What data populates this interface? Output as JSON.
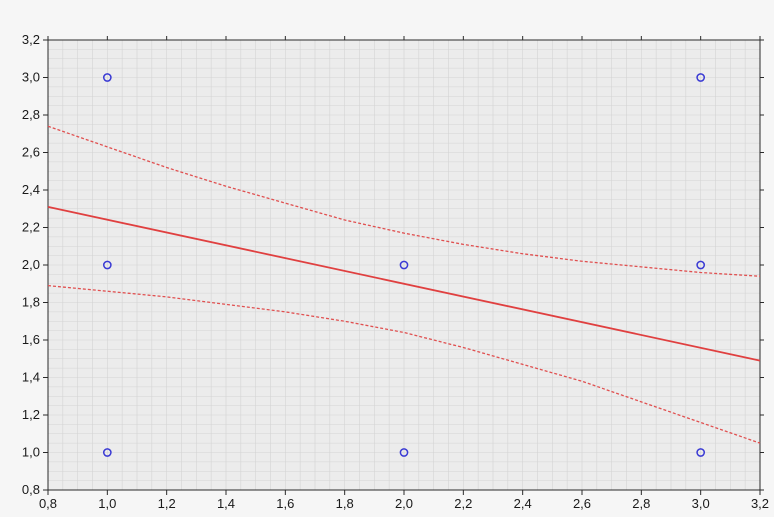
{
  "chart_data": {
    "type": "scatter",
    "title": "",
    "xlabel": "",
    "ylabel": "",
    "xlim": [
      0.8,
      3.2
    ],
    "ylim": [
      0.8,
      3.2
    ],
    "grid": true,
    "x_ticks": [
      0.8,
      1.0,
      1.2,
      1.4,
      1.6,
      1.8,
      2.0,
      2.2,
      2.4,
      2.6,
      2.8,
      3.0,
      3.2
    ],
    "x_tick_labels": [
      "0,8",
      "1,0",
      "1,2",
      "1,4",
      "1,6",
      "1,8",
      "2,0",
      "2,2",
      "2,4",
      "2,6",
      "2,8",
      "3,0",
      "3,2"
    ],
    "y_ticks": [
      0.8,
      1.0,
      1.2,
      1.4,
      1.6,
      1.8,
      2.0,
      2.2,
      2.4,
      2.6,
      2.8,
      3.0,
      3.2
    ],
    "y_tick_labels": [
      "0,8",
      "1,0",
      "1,2",
      "1,4",
      "1,6",
      "1,8",
      "2,0",
      "2,2",
      "2,4",
      "2,6",
      "2,8",
      "3,0",
      "3,2"
    ],
    "points": [
      {
        "x": 1.0,
        "y": 3.0
      },
      {
        "x": 1.0,
        "y": 2.0
      },
      {
        "x": 1.0,
        "y": 1.0
      },
      {
        "x": 2.0,
        "y": 2.0
      },
      {
        "x": 2.0,
        "y": 1.0
      },
      {
        "x": 3.0,
        "y": 3.0
      },
      {
        "x": 3.0,
        "y": 2.0
      },
      {
        "x": 3.0,
        "y": 1.0
      }
    ],
    "regression_line": {
      "x": [
        0.8,
        3.2
      ],
      "y": [
        2.31,
        1.49
      ]
    },
    "confidence_upper": {
      "x": [
        0.8,
        1.0,
        1.2,
        1.4,
        1.6,
        1.8,
        2.0,
        2.2,
        2.4,
        2.6,
        2.8,
        3.0,
        3.2
      ],
      "y": [
        2.74,
        2.63,
        2.52,
        2.42,
        2.33,
        2.24,
        2.17,
        2.11,
        2.06,
        2.02,
        1.99,
        1.96,
        1.94
      ]
    },
    "confidence_lower": {
      "x": [
        0.8,
        1.0,
        1.2,
        1.4,
        1.6,
        1.8,
        2.0,
        2.2,
        2.4,
        2.6,
        2.8,
        3.0,
        3.2
      ],
      "y": [
        1.89,
        1.86,
        1.83,
        1.79,
        1.75,
        1.7,
        1.64,
        1.56,
        1.47,
        1.38,
        1.27,
        1.16,
        1.05
      ]
    },
    "colors": {
      "points": "#3a3ad4",
      "regression": "#e04040",
      "confidence": "#e05050",
      "grid": "#d4d4d4",
      "plot_background": "#ececec"
    }
  }
}
